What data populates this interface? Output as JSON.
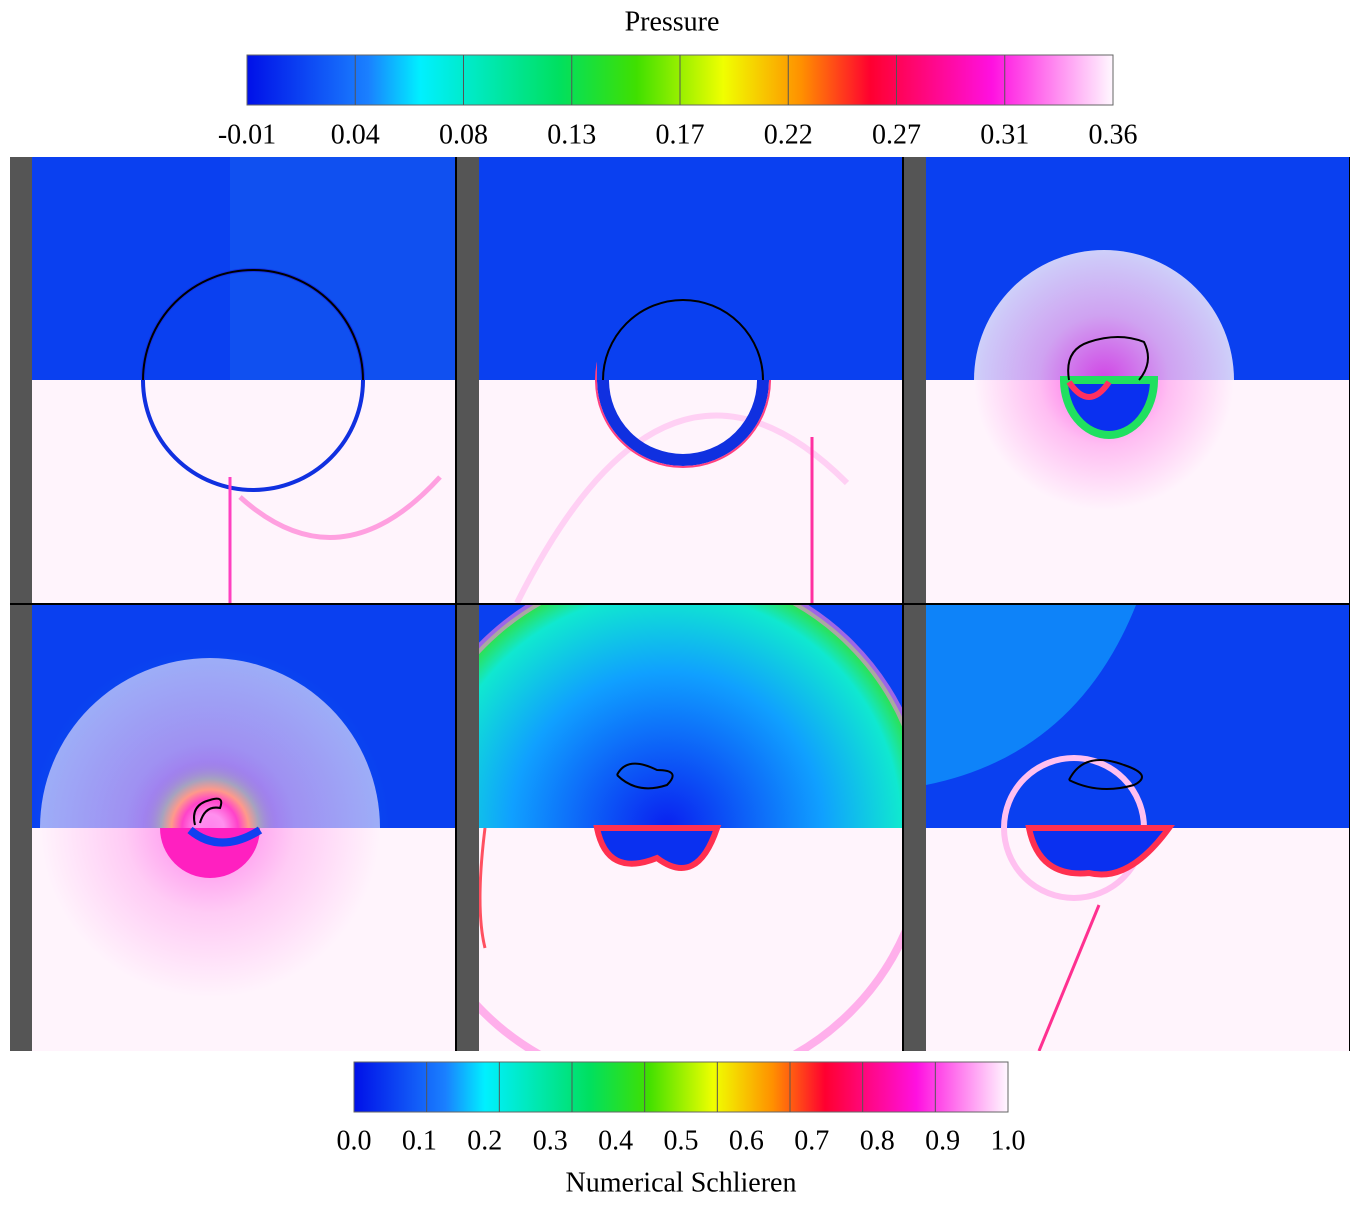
{
  "pressure_colorbar": {
    "title": "Pressure",
    "ticks": [
      "-0.01",
      "0.04",
      "0.08",
      "0.13",
      "0.17",
      "0.22",
      "0.27",
      "0.31",
      "0.36"
    ]
  },
  "schlieren_colorbar": {
    "title": "Numerical Schlieren",
    "ticks": [
      "0.0",
      "0.1",
      "0.2",
      "0.3",
      "0.4",
      "0.5",
      "0.6",
      "0.7",
      "0.8",
      "0.9",
      "1.0"
    ]
  }
}
